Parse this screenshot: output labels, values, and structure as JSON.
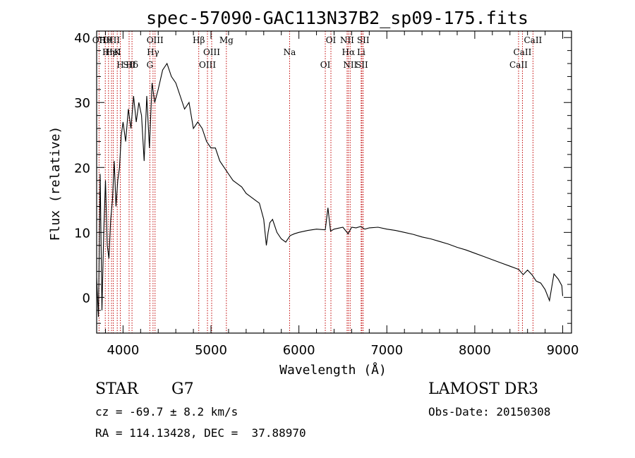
{
  "chart_data": {
    "type": "line",
    "title": "spec-57090-GAC113N37B2_sp09-175.fits",
    "xlabel": "Wavelength (Å)",
    "ylabel": "Flux (relative)",
    "xlim": [
      3700,
      9100
    ],
    "ylim": [
      -5.5,
      41
    ],
    "xticks": [
      4000,
      5000,
      6000,
      7000,
      8000,
      9000
    ],
    "xtick_labels": [
      "4000",
      "5000",
      "6000",
      "7000",
      "8000",
      "9000"
    ],
    "yticks": [
      0,
      10,
      20,
      30,
      40
    ],
    "ytick_labels": [
      "0",
      "10",
      "20",
      "30",
      "40"
    ],
    "grid": false,
    "line_color": "#000000",
    "marker_color": "#c00000",
    "series": [
      {
        "name": "spectrum",
        "x": [
          3700,
          3720,
          3740,
          3760,
          3780,
          3800,
          3820,
          3840,
          3860,
          3880,
          3900,
          3920,
          3940,
          3960,
          3980,
          4000,
          4030,
          4060,
          4090,
          4120,
          4150,
          4180,
          4210,
          4240,
          4270,
          4300,
          4330,
          4360,
          4400,
          4450,
          4500,
          4550,
          4600,
          4650,
          4700,
          4750,
          4800,
          4850,
          4900,
          4950,
          5000,
          5050,
          5100,
          5150,
          5200,
          5250,
          5300,
          5350,
          5400,
          5450,
          5500,
          5550,
          5600,
          5630,
          5650,
          5670,
          5700,
          5750,
          5800,
          5850,
          5900,
          5950,
          6000,
          6100,
          6200,
          6300,
          6330,
          6360,
          6400,
          6500,
          6560,
          6600,
          6650,
          6700,
          6750,
          6800,
          6900,
          7000,
          7100,
          7200,
          7300,
          7400,
          7500,
          7600,
          7700,
          7800,
          7900,
          8000,
          8100,
          8200,
          8300,
          8400,
          8500,
          8550,
          8600,
          8650,
          8700,
          8750,
          8800,
          8850,
          8900,
          8950,
          8990,
          9000
        ],
        "y": [
          3,
          -3,
          19,
          -2,
          10,
          18,
          8,
          6,
          12,
          15,
          21,
          14,
          18,
          20,
          25,
          27,
          24,
          29,
          26,
          31,
          27,
          30,
          28,
          21,
          31,
          23,
          33,
          30,
          32,
          35,
          36,
          34,
          33,
          31,
          29,
          30,
          26,
          27,
          26,
          24,
          23,
          23,
          21,
          20,
          19,
          18,
          17.5,
          17,
          16,
          15.5,
          15,
          14.5,
          12,
          8,
          10,
          11.5,
          12,
          10,
          9,
          8.5,
          9.5,
          9.8,
          10,
          10.3,
          10.5,
          10.4,
          13.8,
          10.2,
          10.5,
          10.8,
          9.8,
          10.8,
          10.7,
          10.9,
          10.5,
          10.7,
          10.8,
          10.5,
          10.3,
          10,
          9.7,
          9.3,
          9,
          8.6,
          8.2,
          7.7,
          7.3,
          6.8,
          6.3,
          5.8,
          5.3,
          4.8,
          4.3,
          3.5,
          4.2,
          3.5,
          2.5,
          2.2,
          1.2,
          -0.5,
          3.6,
          2.8,
          1.8,
          0.2
        ]
      }
    ],
    "line_markers": [
      {
        "label": "Hθ",
        "x": 3798
      },
      {
        "label": "K",
        "x": 3934
      },
      {
        "label": "Hδ",
        "x": 4102
      },
      {
        "label": "OII",
        "x": 3727
      },
      {
        "label": "HeI",
        "x": 3889
      },
      {
        "label": "SII",
        "x": 4069
      },
      {
        "label": "OIII",
        "x": 3869
      },
      {
        "label": "Hη",
        "x": 3835
      },
      {
        "label": "H",
        "x": 3969
      },
      {
        "label": "OIII",
        "x": 4364
      },
      {
        "label": "Hγ",
        "x": 4341
      },
      {
        "label": "G",
        "x": 4305
      },
      {
        "label": "Hβ",
        "x": 4861
      },
      {
        "label": "OIII",
        "x": 5008
      },
      {
        "label": "OIII",
        "x": 4960
      },
      {
        "label": "Mg",
        "x": 5175
      },
      {
        "label": "Na",
        "x": 5894
      },
      {
        "label": "OI",
        "x": 6300
      },
      {
        "label": "OI",
        "x": 6364
      },
      {
        "label": "Hα",
        "x": 6563
      },
      {
        "label": "SII",
        "x": 6716
      },
      {
        "label": "NII",
        "x": 6548
      },
      {
        "label": "Li",
        "x": 6708
      },
      {
        "label": "NII",
        "x": 6583
      },
      {
        "label": "SII",
        "x": 6731
      },
      {
        "label": "CaII",
        "x": 8542
      },
      {
        "label": "CaII",
        "x": 8498
      },
      {
        "label": "CaII",
        "x": 8662
      }
    ]
  },
  "info": {
    "class": "STAR",
    "subclass": "G7",
    "survey": "LAMOST DR3",
    "cz": "cz = -69.7 ± 8.2 km/s",
    "obs_date": "Obs-Date: 20150308",
    "coords": "RA = 114.13428, DEC =  37.88970"
  }
}
